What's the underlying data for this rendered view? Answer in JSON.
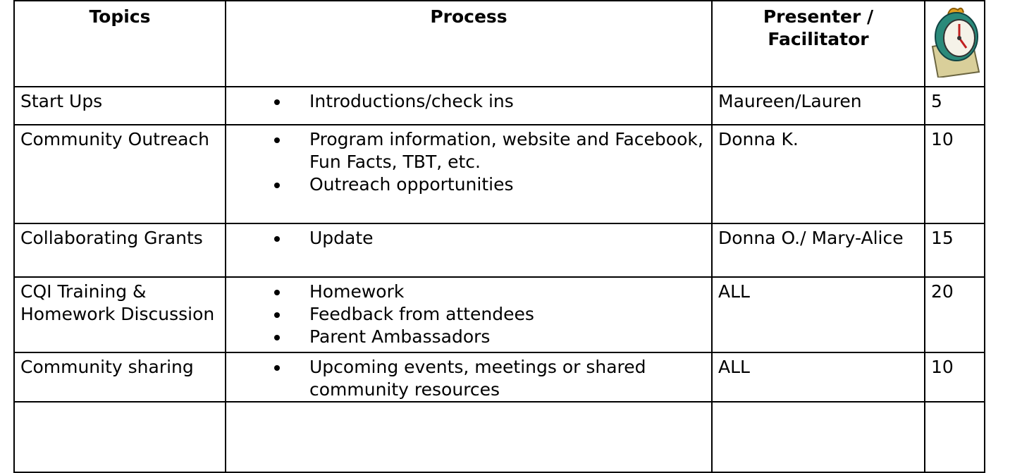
{
  "table": {
    "header": [
      "Topics",
      "Process",
      "Presenter / Facilitator"
    ],
    "rows": [
      {
        "topic": "Start Ups",
        "process": [
          "Introductions/check ins"
        ],
        "presenter": "Maureen/Lauren",
        "minutes": 5
      },
      {
        "topic": "Community Outreach",
        "process": [
          "Program information, website and Facebook, Fun Facts, TBT, etc.",
          "Outreach opportunities"
        ],
        "presenter": "Donna K.",
        "minutes": 10
      },
      {
        "topic": "Collaborating Grants",
        "process": [
          "Update"
        ],
        "presenter": "Donna O./ Mary-Alice",
        "minutes": 15
      },
      {
        "topic": "CQI Training & Homework Discussion",
        "process": [
          "Homework",
          "Feedback from attendees",
          "Parent Ambassadors"
        ],
        "presenter": "ALL",
        "minutes": 20
      },
      {
        "topic": "Community sharing",
        "process": [
          "Upcoming events, meetings or shared community resources"
        ],
        "presenter": "ALL",
        "minutes": 10
      }
    ]
  }
}
